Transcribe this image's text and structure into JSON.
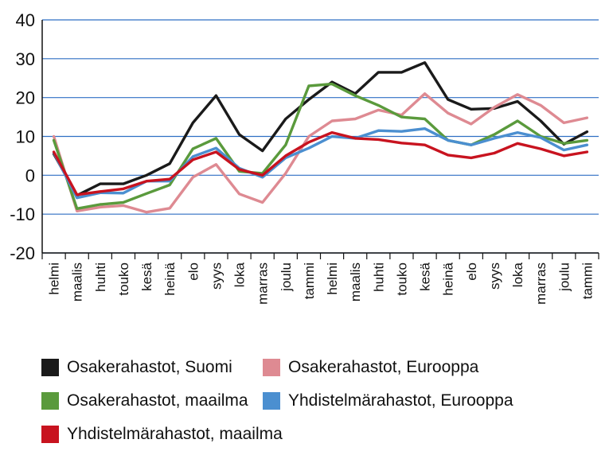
{
  "chart_data": {
    "type": "line",
    "title": "",
    "xlabel": "",
    "ylabel": "",
    "ylim": [
      -20,
      40
    ],
    "yticks": [
      "40",
      "30",
      "20",
      "10",
      "0",
      "-10",
      "-20"
    ],
    "grid": "horizontal",
    "legend_position": "bottom",
    "categories": [
      "helmi",
      "maalis",
      "huhti",
      "touko",
      "kesä",
      "heinä",
      "elo",
      "syys",
      "loka",
      "marras",
      "joulu",
      "tammi",
      "helmi",
      "maalis",
      "huhti",
      "touko",
      "kesä",
      "heinä",
      "elo",
      "syys",
      "loka",
      "marras",
      "joulu",
      "tammi"
    ],
    "series": [
      {
        "name": "Osakerahastot, Suomi",
        "color": "#1a1a1a",
        "values": [
          5.5,
          -5.2,
          -2.2,
          -2.2,
          0,
          3,
          13.5,
          20.5,
          10.5,
          6.3,
          14.5,
          19.5,
          24,
          21,
          26.5,
          26.5,
          29,
          19.5,
          17,
          17.2,
          19,
          14,
          8,
          11.2
        ]
      },
      {
        "name": "Osakerahastot, Eurooppa",
        "color": "#de8a92",
        "values": [
          10,
          -9.2,
          -8.2,
          -7.8,
          -9.5,
          -8.5,
          -0.5,
          2.8,
          -4.8,
          -7,
          0.5,
          10,
          14,
          14.5,
          16.8,
          15.5,
          21,
          16,
          13.2,
          17.5,
          20.8,
          18,
          13.5,
          14.8
        ]
      },
      {
        "name": "Osakerahastot, maailma",
        "color": "#5a9a3c",
        "values": [
          9,
          -8.6,
          -7.5,
          -7,
          -4.7,
          -2.5,
          6.8,
          9.5,
          1,
          0.5,
          7.8,
          23,
          23.5,
          20.5,
          18,
          15,
          14.5,
          9,
          7.8,
          10.5,
          14,
          10,
          8.2,
          9
        ]
      },
      {
        "name": "Yhdistelmärahastot, Eurooppa",
        "color": "#4b8fd0",
        "values": [
          5.8,
          -5.8,
          -4.5,
          -4.6,
          -1.5,
          -1.5,
          4.8,
          7,
          1.8,
          -0.5,
          4.5,
          7,
          10,
          9.5,
          11.5,
          11.3,
          12,
          9,
          7.8,
          9.5,
          11,
          9.7,
          6.5,
          7.8
        ]
      },
      {
        "name": "Yhdistelmärahastot, maailma",
        "color": "#c8131f",
        "values": [
          6,
          -5,
          -4.2,
          -3.5,
          -1.5,
          -1,
          4,
          6,
          1.5,
          0,
          5,
          8.5,
          11,
          9.5,
          9.2,
          8.3,
          7.8,
          5.2,
          4.5,
          5.7,
          8.2,
          6.8,
          5,
          6
        ]
      }
    ]
  }
}
